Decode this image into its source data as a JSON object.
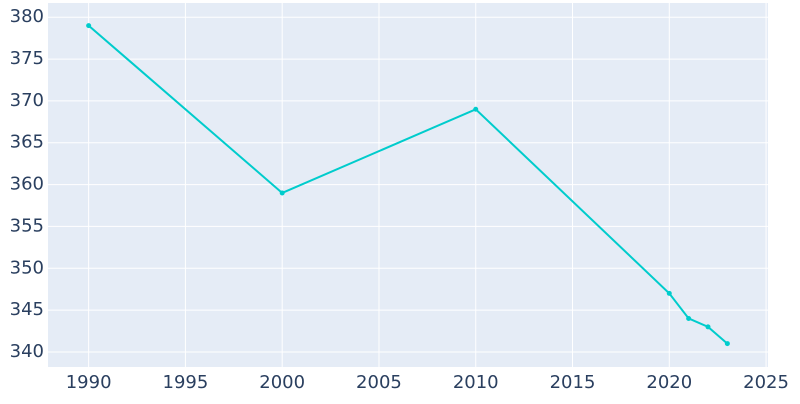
{
  "chart_data": {
    "type": "line",
    "x": [
      1990,
      2000,
      2010,
      2020,
      2021,
      2022,
      2023
    ],
    "series": [
      {
        "color": "#00cccc",
        "values": [
          379,
          359,
          369,
          347,
          344,
          343,
          341
        ]
      }
    ],
    "xlim": [
      1987.9,
      2025.1
    ],
    "xticks": [
      1990,
      1995,
      2000,
      2005,
      2010,
      2015,
      2020,
      2025
    ],
    "ylim": [
      338.2,
      381.7
    ],
    "yticks": [
      340,
      345,
      350,
      355,
      360,
      365,
      370,
      375,
      380
    ],
    "grid": true
  }
}
